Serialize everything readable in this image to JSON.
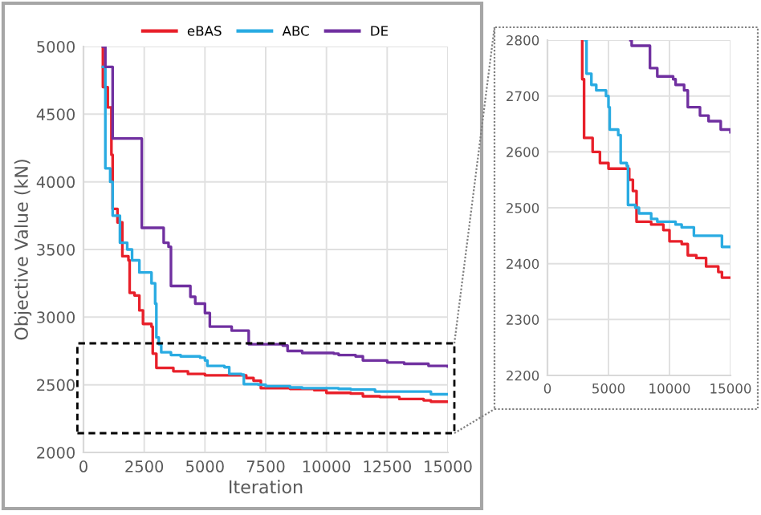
{
  "chart_data": [
    {
      "type": "step",
      "xlabel": "Iteration",
      "ylabel": "Objective Value (kN)",
      "xlim": [
        0,
        15000
      ],
      "ylim": [
        2000,
        5000
      ],
      "xticks": [
        0,
        2500,
        5000,
        7500,
        10000,
        12500,
        15000
      ],
      "yticks": [
        2000,
        2500,
        3000,
        3500,
        4000,
        4500,
        5000
      ],
      "grid": true,
      "legend": "top",
      "series": [
        {
          "name": "eBAS",
          "color": "#e8202a",
          "x": [
            800,
            800,
            1000,
            1150,
            1200,
            1400,
            1600,
            1850,
            1900,
            2100,
            2300,
            2450,
            2800,
            2850,
            3000,
            3000,
            3700,
            4300,
            5000,
            6700,
            7000,
            7300,
            8500,
            9500,
            10000,
            11000,
            11500,
            12200,
            13000,
            14000,
            14300,
            15000
          ],
          "values": [
            5000,
            4700,
            4550,
            4200,
            3800,
            3700,
            3450,
            3420,
            3180,
            3160,
            3050,
            2950,
            2930,
            2730,
            2720,
            2625,
            2600,
            2580,
            2570,
            2550,
            2530,
            2475,
            2470,
            2460,
            2440,
            2435,
            2415,
            2410,
            2395,
            2385,
            2375,
            2375
          ]
        },
        {
          "name": "ABC",
          "color": "#29abe2",
          "x": [
            800,
            900,
            1100,
            1200,
            1500,
            1800,
            2000,
            2300,
            2800,
            2950,
            3000,
            3100,
            3200,
            3600,
            4000,
            4800,
            5000,
            5100,
            5800,
            6000,
            6500,
            6600,
            7200,
            7500,
            8500,
            9000,
            10500,
            11000,
            12000,
            14300,
            15000
          ],
          "values": [
            4850,
            4100,
            4000,
            3750,
            3550,
            3500,
            3420,
            3330,
            3250,
            3100,
            2850,
            2800,
            2740,
            2720,
            2710,
            2700,
            2680,
            2640,
            2630,
            2580,
            2575,
            2505,
            2500,
            2490,
            2480,
            2475,
            2470,
            2465,
            2450,
            2430,
            2430
          ]
        },
        {
          "name": "DE",
          "color": "#7030a0",
          "x": [
            800,
            900,
            1200,
            1900,
            2400,
            3200,
            3300,
            3500,
            3600,
            4300,
            4400,
            4600,
            5000,
            5200,
            6100,
            6800,
            8200,
            8400,
            9000,
            10300,
            10500,
            11200,
            11500,
            12500,
            13200,
            14200,
            15000
          ],
          "values": [
            5000,
            4850,
            4320,
            4320,
            3660,
            3660,
            3550,
            3520,
            3230,
            3230,
            3150,
            3100,
            3030,
            2930,
            2900,
            2800,
            2790,
            2750,
            2735,
            2730,
            2720,
            2710,
            2680,
            2665,
            2655,
            2640,
            2635
          ]
        }
      ]
    },
    {
      "type": "step",
      "xlim": [
        0,
        15000
      ],
      "ylim": [
        2200,
        2800
      ],
      "xticks": [
        0,
        5000,
        10000,
        15000
      ],
      "yticks": [
        2200,
        2300,
        2400,
        2500,
        2600,
        2700,
        2800
      ],
      "grid": true,
      "series": [
        {
          "color": "#e8202a",
          "x": [
            2850,
            2850,
            3000,
            3000,
            3700,
            4300,
            5000,
            6700,
            7000,
            7300,
            8500,
            9500,
            10000,
            11000,
            11500,
            12200,
            13000,
            14000,
            14300,
            15000
          ],
          "values": [
            2800,
            2730,
            2720,
            2625,
            2600,
            2580,
            2570,
            2550,
            2530,
            2475,
            2470,
            2460,
            2440,
            2435,
            2415,
            2410,
            2395,
            2385,
            2375,
            2375
          ]
        },
        {
          "color": "#29abe2",
          "x": [
            3100,
            3200,
            3600,
            4000,
            4800,
            5000,
            5100,
            5800,
            6000,
            6500,
            6600,
            7200,
            7500,
            8500,
            9000,
            10500,
            11000,
            12000,
            14300,
            15000
          ],
          "values": [
            2800,
            2740,
            2720,
            2710,
            2700,
            2680,
            2640,
            2630,
            2580,
            2575,
            2505,
            2500,
            2490,
            2480,
            2475,
            2470,
            2465,
            2450,
            2430,
            2430
          ]
        },
        {
          "color": "#7030a0",
          "x": [
            6800,
            6900,
            8200,
            8400,
            9000,
            10300,
            10500,
            11200,
            11500,
            12500,
            13200,
            14200,
            15000
          ],
          "values": [
            2800,
            2790,
            2790,
            2750,
            2735,
            2730,
            2720,
            2710,
            2680,
            2665,
            2655,
            2640,
            2635
          ]
        }
      ]
    }
  ]
}
